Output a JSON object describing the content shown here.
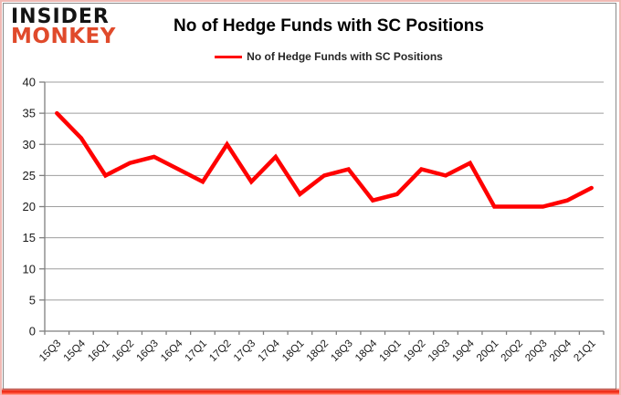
{
  "header": {
    "logo_line1": "INSIDER",
    "logo_line2": "MONKEY",
    "title": "No of Hedge Funds with SC Positions"
  },
  "legend": {
    "label": "No of Hedge Funds with SC Positions"
  },
  "chart_data": {
    "type": "line",
    "title": "No of Hedge Funds with SC Positions",
    "categories": [
      "15Q3",
      "15Q4",
      "16Q1",
      "16Q2",
      "16Q3",
      "16Q4",
      "17Q1",
      "17Q2",
      "17Q3",
      "17Q4",
      "18Q1",
      "18Q2",
      "18Q3",
      "18Q4",
      "19Q1",
      "19Q2",
      "19Q3",
      "19Q4",
      "20Q1",
      "20Q2",
      "20Q3",
      "20Q4",
      "21Q1"
    ],
    "series": [
      {
        "name": "No of Hedge Funds with SC Positions",
        "color": "#ff0000",
        "values": [
          35,
          31,
          25,
          27,
          28,
          26,
          24,
          30,
          24,
          28,
          22,
          25,
          26,
          21,
          22,
          26,
          25,
          27,
          20,
          20,
          20,
          21,
          23
        ]
      }
    ],
    "xlabel": "",
    "ylabel": "",
    "ylim": [
      0,
      40
    ],
    "ytick_interval": 5,
    "grid": true,
    "legend_position": "top"
  },
  "colors": {
    "line_red": "#ff0000",
    "logo_red": "#e04a2b",
    "grid_gray": "#9e9e9e",
    "axis_gray": "#7f7f7f",
    "frame_gray": "#8a8a8a",
    "outer_pink": "#f0b9b4",
    "bottom_red": "#e8230f"
  }
}
